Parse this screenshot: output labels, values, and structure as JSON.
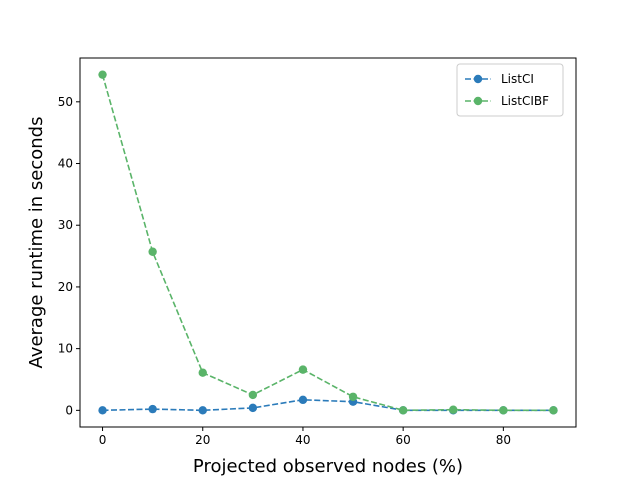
{
  "chart_data": {
    "type": "line",
    "title": "",
    "xlabel": "Projected observed nodes (%)",
    "ylabel": "Average runtime in seconds",
    "x": [
      0,
      10,
      20,
      30,
      40,
      50,
      60,
      70,
      80,
      90
    ],
    "xlim": [
      -4.5,
      94.5
    ],
    "ylim": [
      -2.7,
      57.1
    ],
    "xticks": [
      0,
      20,
      40,
      60,
      80
    ],
    "yticks": [
      0,
      10,
      20,
      30,
      40,
      50
    ],
    "grid": false,
    "legend_position": "top-right",
    "series": [
      {
        "name": "ListCI",
        "color": "#2b7bba",
        "line_style": "dashed",
        "marker": "circle",
        "values": [
          0.0,
          0.2,
          0.0,
          0.4,
          1.7,
          1.4,
          0.0,
          0.0,
          0.0,
          0.0
        ]
      },
      {
        "name": "ListCIBF",
        "color": "#5ab469",
        "line_style": "dashed",
        "marker": "circle",
        "values": [
          54.4,
          25.7,
          6.1,
          2.5,
          6.6,
          2.2,
          0.0,
          0.1,
          0.0,
          0.0
        ]
      }
    ]
  }
}
